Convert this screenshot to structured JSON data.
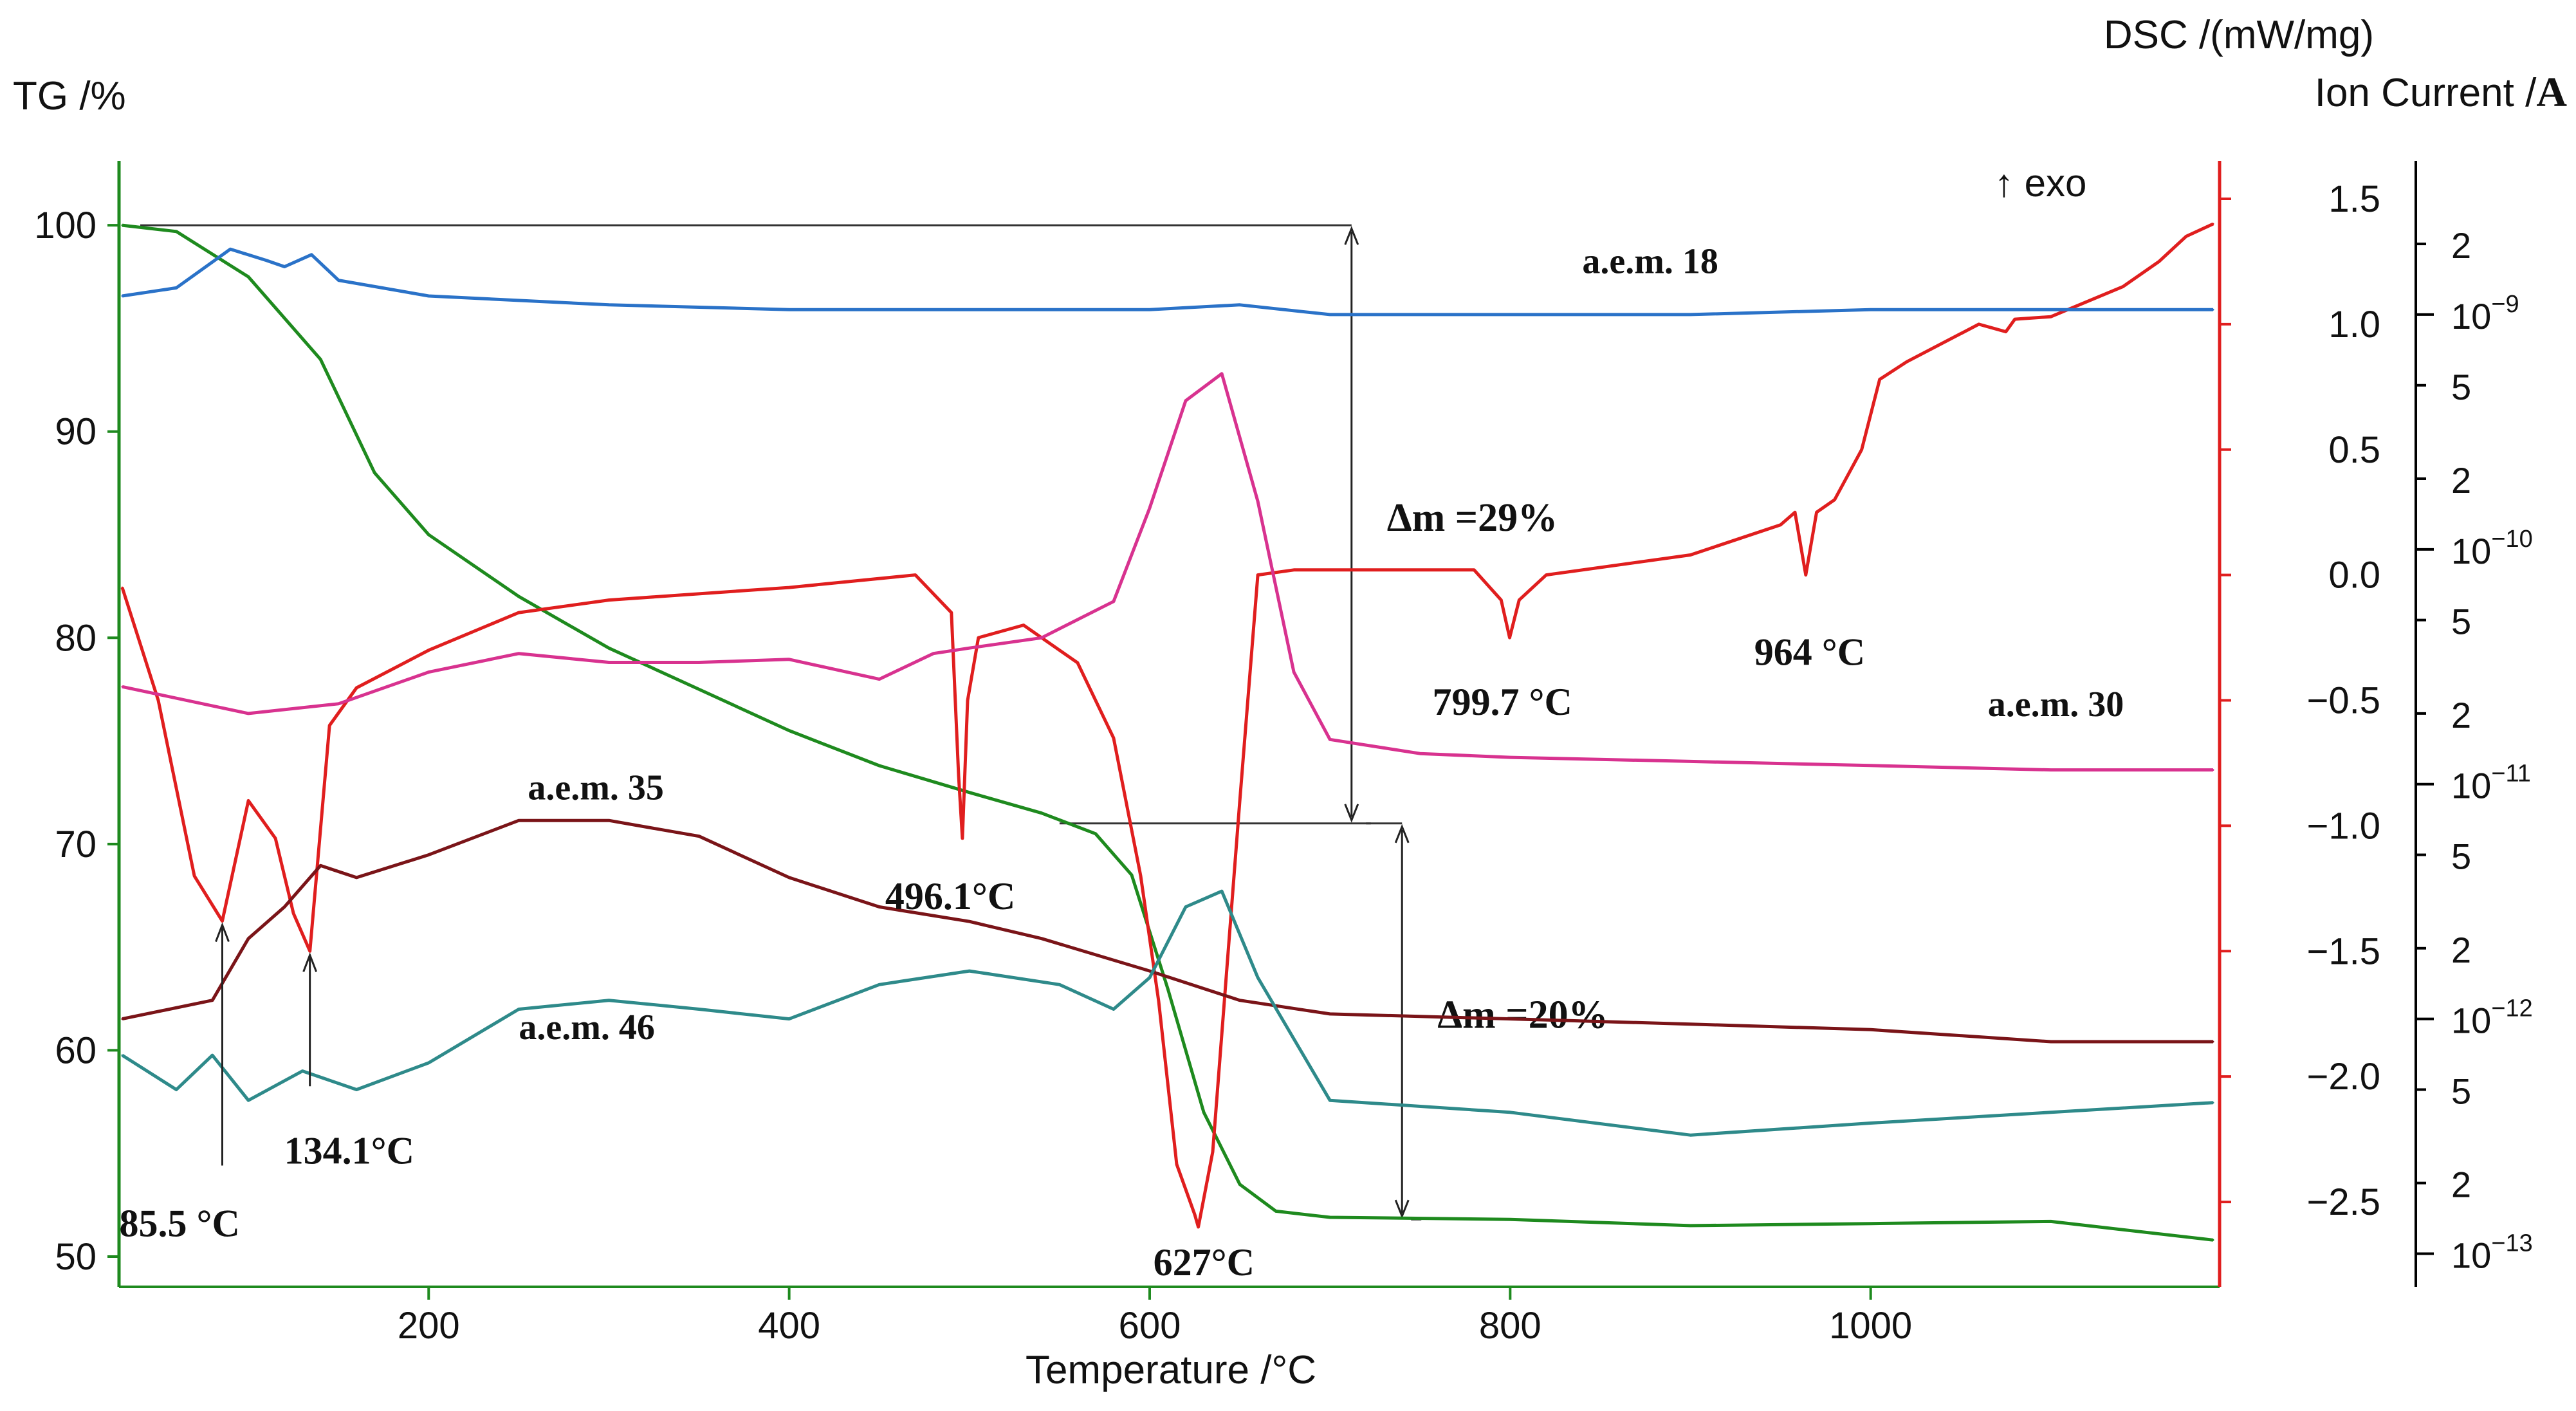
{
  "chart_data": {
    "type": "line",
    "xlabel": "Temperature /°C",
    "xlim": [
      30,
      1190
    ],
    "xticks": [
      200,
      400,
      600,
      800,
      1000
    ],
    "axes": {
      "tg": {
        "label": "TG /%",
        "ylim": [
          49,
          102.5
        ],
        "ticks": [
          50,
          60,
          70,
          80,
          90,
          100
        ]
      },
      "dsc": {
        "label": "DSC /(mW/mg)",
        "ylim": [
          -2.8,
          1.6
        ],
        "ticks": [
          1.5,
          1.0,
          0.5,
          0.0,
          -0.5,
          -1.0,
          -1.5,
          -2.0,
          -2.5
        ],
        "tick_labels": [
          "1.5",
          "1.0",
          "0.5",
          "0.0",
          "−0.5",
          "−1.0",
          "−1.5",
          "−2.0",
          "−2.5"
        ]
      },
      "ion": {
        "label": "Ion Current /",
        "label_bold": "A",
        "ylog": [
          -13.1,
          -8.4
        ],
        "ticks": [
          {
            "v": 2e-09,
            "text": "2"
          },
          {
            "v": 1e-09,
            "text": "10",
            "exp": "−9"
          },
          {
            "v": 5e-10,
            "text": "5"
          },
          {
            "v": 2e-10,
            "text": "2"
          },
          {
            "v": 1e-10,
            "text": "10",
            "exp": "−10"
          },
          {
            "v": 5e-11,
            "text": "5"
          },
          {
            "v": 2e-11,
            "text": "2"
          },
          {
            "v": 1e-11,
            "text": "10",
            "exp": "−11"
          },
          {
            "v": 5e-12,
            "text": "5"
          },
          {
            "v": 2e-12,
            "text": "2"
          },
          {
            "v": 1e-12,
            "text": "10",
            "exp": "−12"
          },
          {
            "v": 5e-13,
            "text": "5"
          },
          {
            "v": 2e-13,
            "text": "2"
          },
          {
            "v": 1e-13,
            "text": "10",
            "exp": "−13"
          }
        ]
      }
    },
    "exo_label": "↑ exo",
    "series": [
      {
        "name": "TG",
        "axis": "tg",
        "color": "#1e8a1e",
        "x": [
          30,
          60,
          100,
          140,
          170,
          200,
          250,
          300,
          350,
          400,
          450,
          500,
          540,
          570,
          590,
          610,
          630,
          650,
          670,
          700,
          800,
          900,
          1000,
          1100,
          1190
        ],
        "y": [
          100,
          99.7,
          97.5,
          93.5,
          88,
          85,
          82,
          79.5,
          77.5,
          75.5,
          73.8,
          72.5,
          71.5,
          70.5,
          68.5,
          63,
          57,
          53.5,
          52.2,
          51.9,
          51.8,
          51.5,
          51.6,
          51.7,
          50.8
        ]
      },
      {
        "name": "DSC",
        "axis": "dsc",
        "color": "#e01e1e",
        "x": [
          30,
          50,
          70,
          85.5,
          100,
          115,
          125,
          134.1,
          145,
          160,
          200,
          250,
          300,
          400,
          470,
          490,
          494,
          496.1,
          499,
          505,
          530,
          560,
          580,
          595,
          605,
          615,
          625,
          627,
          635,
          650,
          660,
          680,
          700,
          780,
          795,
          799.7,
          805,
          820,
          900,
          950,
          958,
          964,
          970,
          980,
          995,
          1005,
          1020,
          1060,
          1075,
          1080,
          1100,
          1140,
          1160,
          1175,
          1190
        ],
        "y": [
          -0.05,
          -0.5,
          -1.2,
          -1.38,
          -0.9,
          -1.05,
          -1.35,
          -1.5,
          -0.6,
          -0.45,
          -0.3,
          -0.15,
          -0.1,
          -0.05,
          0.0,
          -0.15,
          -0.8,
          -1.05,
          -0.5,
          -0.25,
          -0.2,
          -0.35,
          -0.65,
          -1.2,
          -1.7,
          -2.35,
          -2.55,
          -2.6,
          -2.3,
          -0.9,
          0.0,
          0.02,
          0.02,
          0.02,
          -0.1,
          -0.25,
          -0.1,
          0.0,
          0.08,
          0.2,
          0.25,
          0.0,
          0.25,
          0.3,
          0.5,
          0.78,
          0.85,
          1.0,
          0.97,
          1.02,
          1.03,
          1.15,
          1.25,
          1.35,
          1.4
        ]
      },
      {
        "name": "a.e.m. 18",
        "axis": "ion",
        "color": "#2a72c8",
        "x": [
          30,
          60,
          90,
          110,
          120,
          135,
          150,
          200,
          300,
          400,
          500,
          600,
          650,
          700,
          800,
          900,
          1000,
          1100,
          1190
        ],
        "y": [
          1.2e-09,
          1.3e-09,
          1.9e-09,
          1.7e-09,
          1.6e-09,
          1.8e-09,
          1.4e-09,
          1.2e-09,
          1.1e-09,
          1.05e-09,
          1.05e-09,
          1.05e-09,
          1.1e-09,
          1e-09,
          1e-09,
          1e-09,
          1.05e-09,
          1.05e-09,
          1.05e-09
        ]
      },
      {
        "name": "a.e.m. 30",
        "axis": "ion",
        "color": "#d8328f",
        "x": [
          30,
          100,
          150,
          200,
          250,
          300,
          350,
          400,
          450,
          480,
          500,
          540,
          580,
          600,
          620,
          640,
          660,
          680,
          700,
          750,
          800,
          900,
          1000,
          1100,
          1190
        ],
        "y": [
          2.6e-11,
          2e-11,
          2.2e-11,
          3e-11,
          3.6e-11,
          3.3e-11,
          3.3e-11,
          3.4e-11,
          2.8e-11,
          3.6e-11,
          3.8e-11,
          4.2e-11,
          6e-11,
          1.5e-10,
          4.3e-10,
          5.6e-10,
          1.6e-10,
          3e-11,
          1.55e-11,
          1.35e-11,
          1.3e-11,
          1.25e-11,
          1.2e-11,
          1.15e-11,
          1.15e-11
        ]
      },
      {
        "name": "a.e.m. 35",
        "axis": "ion",
        "color": "#7a1418",
        "x": [
          30,
          80,
          100,
          120,
          140,
          160,
          200,
          250,
          300,
          350,
          400,
          450,
          500,
          540,
          600,
          650,
          700,
          800,
          900,
          1000,
          1100,
          1190
        ],
        "y": [
          1e-12,
          1.2e-12,
          2.2e-12,
          3e-12,
          4.5e-12,
          4e-12,
          5e-12,
          7e-12,
          7e-12,
          6e-12,
          4e-12,
          3e-12,
          2.6e-12,
          2.2e-12,
          1.6e-12,
          1.2e-12,
          1.05e-12,
          1e-12,
          9.5e-13,
          9e-13,
          8e-13,
          8e-13
        ]
      },
      {
        "name": "a.e.m. 46",
        "axis": "ion",
        "color": "#2e8a8a",
        "x": [
          30,
          60,
          80,
          100,
          130,
          160,
          200,
          250,
          300,
          350,
          400,
          450,
          500,
          550,
          580,
          600,
          620,
          640,
          660,
          700,
          800,
          900,
          1000,
          1100,
          1190
        ],
        "y": [
          7e-13,
          5e-13,
          7e-13,
          4.5e-13,
          6e-13,
          5e-13,
          6.5e-13,
          1.1e-12,
          1.2e-12,
          1.1e-12,
          1e-12,
          1.4e-12,
          1.6e-12,
          1.4e-12,
          1.1e-12,
          1.5e-12,
          3e-12,
          3.5e-12,
          1.5e-12,
          4.5e-13,
          4e-13,
          3.2e-13,
          3.6e-13,
          4e-13,
          4.4e-13
        ]
      }
    ],
    "series_labels": [
      {
        "text": "a.e.m. 18",
        "x": 840,
        "axis": "ion",
        "y": 1.5e-09
      },
      {
        "text": "a.e.m. 30",
        "x": 1065,
        "axis": "ion",
        "y": 1.95e-11
      },
      {
        "text": "a.e.m. 35",
        "x": 255,
        "axis": "ion",
        "y": 8.6e-12
      },
      {
        "text": "a.e.m. 46",
        "x": 250,
        "axis": "ion",
        "y": 8.2e-13
      }
    ],
    "peak_labels": [
      {
        "text": "85.5 °C",
        "x": 85.5,
        "axis": "dsc",
        "y": -1.38
      },
      {
        "text": "134.1°C",
        "x": 134.1,
        "axis": "dsc",
        "y": -1.5
      },
      {
        "text": "496.1°C",
        "x": 496.1,
        "axis": "dsc",
        "y": -1.05
      },
      {
        "text": "627°C",
        "x": 627,
        "axis": "dsc",
        "y": -2.6
      },
      {
        "text": "799.7 °C",
        "x": 799.7,
        "axis": "dsc",
        "y": -0.25
      },
      {
        "text": "964 °C",
        "x": 964,
        "axis": "dsc",
        "y": 0.0
      }
    ],
    "mass_losses": [
      {
        "text": "Δm =29%",
        "x": 712,
        "from": 100,
        "to": 71
      },
      {
        "text": "Δm =20%",
        "x": 740,
        "from": 71,
        "to": 51.8
      }
    ]
  }
}
